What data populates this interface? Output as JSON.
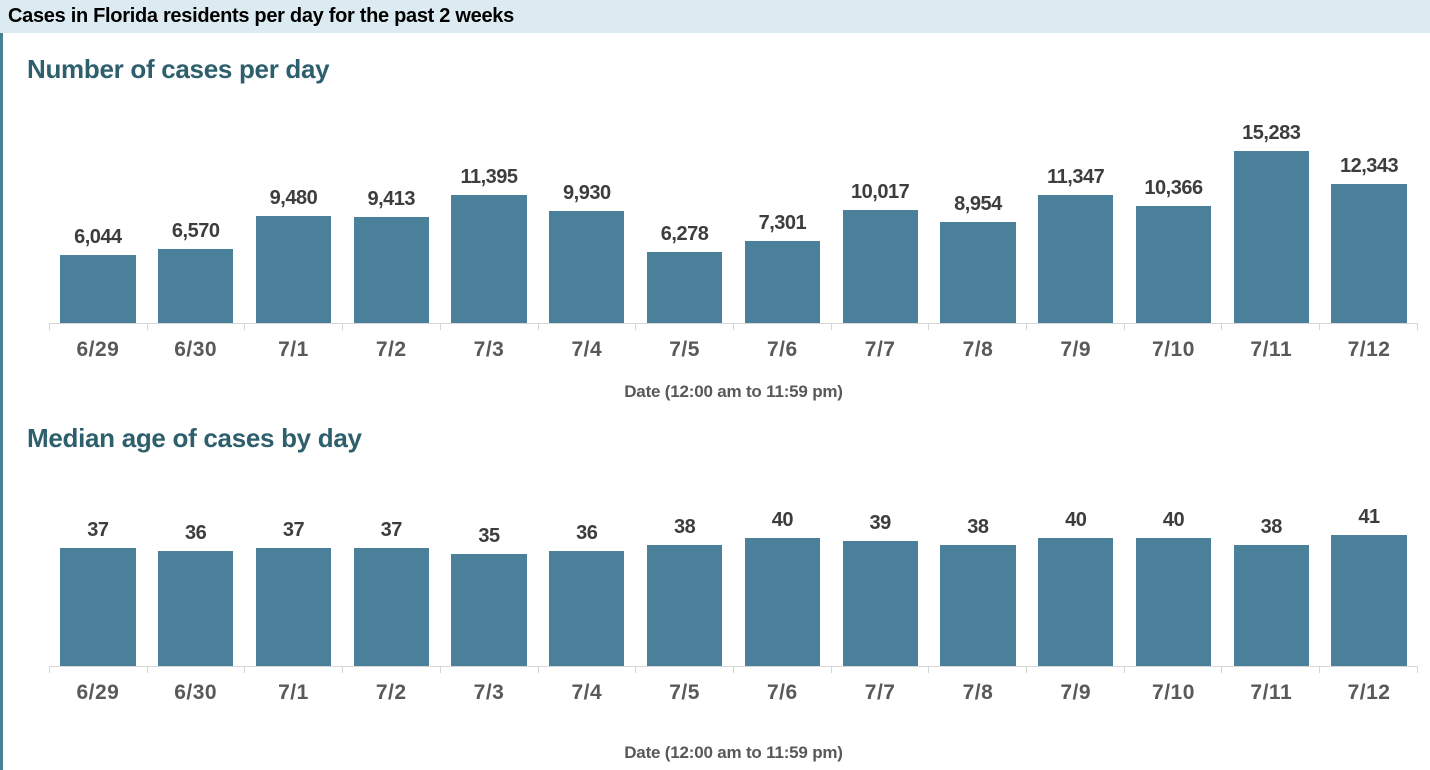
{
  "header": {
    "title": "Cases in Florida residents per day for the past 2 weeks"
  },
  "chart_data": [
    {
      "type": "bar",
      "title": "Number of cases per day",
      "xlabel": "Date (12:00 am to 11:59 pm)",
      "ylabel": "",
      "categories": [
        "6/29",
        "6/30",
        "7/1",
        "7/2",
        "7/3",
        "7/4",
        "7/5",
        "7/6",
        "7/7",
        "7/8",
        "7/9",
        "7/10",
        "7/11",
        "7/12"
      ],
      "values": [
        6044,
        6570,
        9480,
        9413,
        11395,
        9930,
        6278,
        7301,
        10017,
        8954,
        11347,
        10366,
        15283,
        12343
      ],
      "data_labels": [
        "6,044",
        "6,570",
        "9,480",
        "9,413",
        "11,395",
        "9,930",
        "6,278",
        "7,301",
        "10,017",
        "8,954",
        "11,347",
        "10,366",
        "15,283",
        "12,343"
      ],
      "ylim": [
        0,
        16000
      ],
      "grid": false,
      "legend": false,
      "bar_color": "#4a8099"
    },
    {
      "type": "bar",
      "title": "Median age of cases by day",
      "xlabel": "Date (12:00 am to 11:59 pm)",
      "ylabel": "",
      "categories": [
        "6/29",
        "6/30",
        "7/1",
        "7/2",
        "7/3",
        "7/4",
        "7/5",
        "7/6",
        "7/7",
        "7/8",
        "7/9",
        "7/10",
        "7/11",
        "7/12"
      ],
      "values": [
        37,
        36,
        37,
        37,
        35,
        36,
        38,
        40,
        39,
        38,
        40,
        40,
        38,
        41
      ],
      "data_labels": [
        "37",
        "36",
        "37",
        "37",
        "35",
        "36",
        "38",
        "40",
        "39",
        "38",
        "40",
        "40",
        "38",
        "41"
      ],
      "ylim": [
        0,
        43
      ],
      "grid": false,
      "legend": false,
      "bar_color": "#4a8099"
    }
  ],
  "colors": {
    "header_bg": "#dcebf1",
    "header_text": "#000000",
    "chart_title": "#2e5f6d",
    "bar_fill": "#4a8099",
    "value_label": "#3d3d3d",
    "tick_label": "#58595b",
    "axis_line": "#d6d6d6",
    "accent_border": "#4a7f96"
  }
}
